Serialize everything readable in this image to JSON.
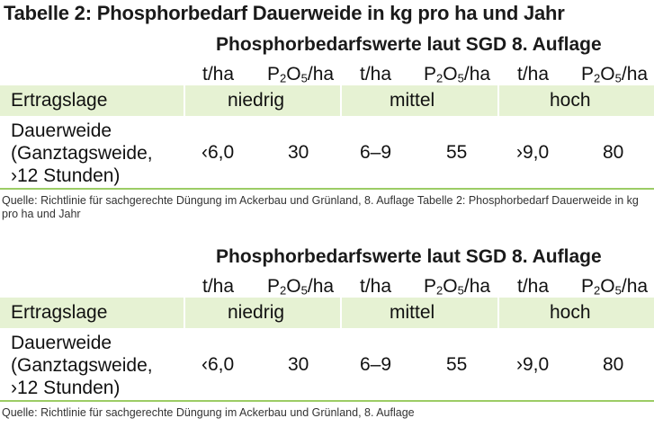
{
  "title": "Tabelle 2: Phosphorbedarf Dauerweide in kg pro ha und Jahr",
  "tables": [
    {
      "group_header": "Phosphorbedarfswerte laut SGD 8. Auflage",
      "unit_t": "t/ha",
      "unit_p_prefix": "P",
      "unit_p_sub1": "2",
      "unit_p_mid": "O",
      "unit_p_sub2": "5",
      "unit_p_suffix": "/ha",
      "band_label": "Ertragslage",
      "levels": [
        "niedrig",
        "mittel",
        "hoch"
      ],
      "row_label": "Dauerweide\n(Ganztagsweide,\n›12 Stunden)",
      "values": [
        "‹6,0",
        "30",
        "6–9",
        "55",
        "›9,0",
        "80"
      ],
      "source": "Quelle: Richtlinie für sachgerechte Düngung im Ackerbau und Grünland, 8. Auflage Tabelle 2: Phosphorbedarf Dauerweide in kg pro ha und Jahr"
    },
    {
      "group_header": "Phosphorbedarfswerte laut SGD 8. Auflage",
      "unit_t": "t/ha",
      "unit_p_prefix": "P",
      "unit_p_sub1": "2",
      "unit_p_mid": "O",
      "unit_p_sub2": "5",
      "unit_p_suffix": "/ha",
      "band_label": "Ertragslage",
      "levels": [
        "niedrig",
        "mittel",
        "hoch"
      ],
      "row_label": "Dauerweide\n(Ganztagsweide,\n›12 Stunden)",
      "values": [
        "‹6,0",
        "30",
        "6–9",
        "55",
        "›9,0",
        "80"
      ],
      "source": "Quelle: Richtlinie für sachgerechte Düngung im Ackerbau und Grünland, 8. Auflage"
    }
  ],
  "colors": {
    "band": "#e6f2d3",
    "rule": "#9ccc65"
  }
}
